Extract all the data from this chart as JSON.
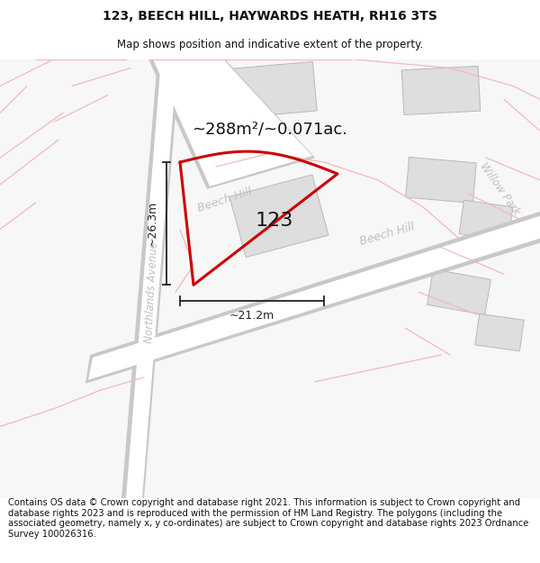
{
  "title": "123, BEECH HILL, HAYWARDS HEATH, RH16 3TS",
  "subtitle": "Map shows position and indicative extent of the property.",
  "footer": "Contains OS data © Crown copyright and database right 2021. This information is subject to Crown copyright and database rights 2023 and is reproduced with the permission of HM Land Registry. The polygons (including the associated geometry, namely x, y co-ordinates) are subject to Crown copyright and database rights 2023 Ordnance Survey 100026316.",
  "area_label": "~288m²/~0.071ac.",
  "width_label": "~21.2m",
  "height_label": "~26.3m",
  "property_number": "123",
  "bg_color": "#f7f7f7",
  "road_fill": "#ffffff",
  "road_edge": "#c8c8c8",
  "building_fill": "#dedede",
  "building_edge": "#b8b8b8",
  "red_color": "#cc0000",
  "pink_color": "#f5b8b8",
  "street_color": "#c0c0c0",
  "dim_color": "#222222",
  "title_fs": 10,
  "subtitle_fs": 8.5,
  "footer_fs": 7.2
}
